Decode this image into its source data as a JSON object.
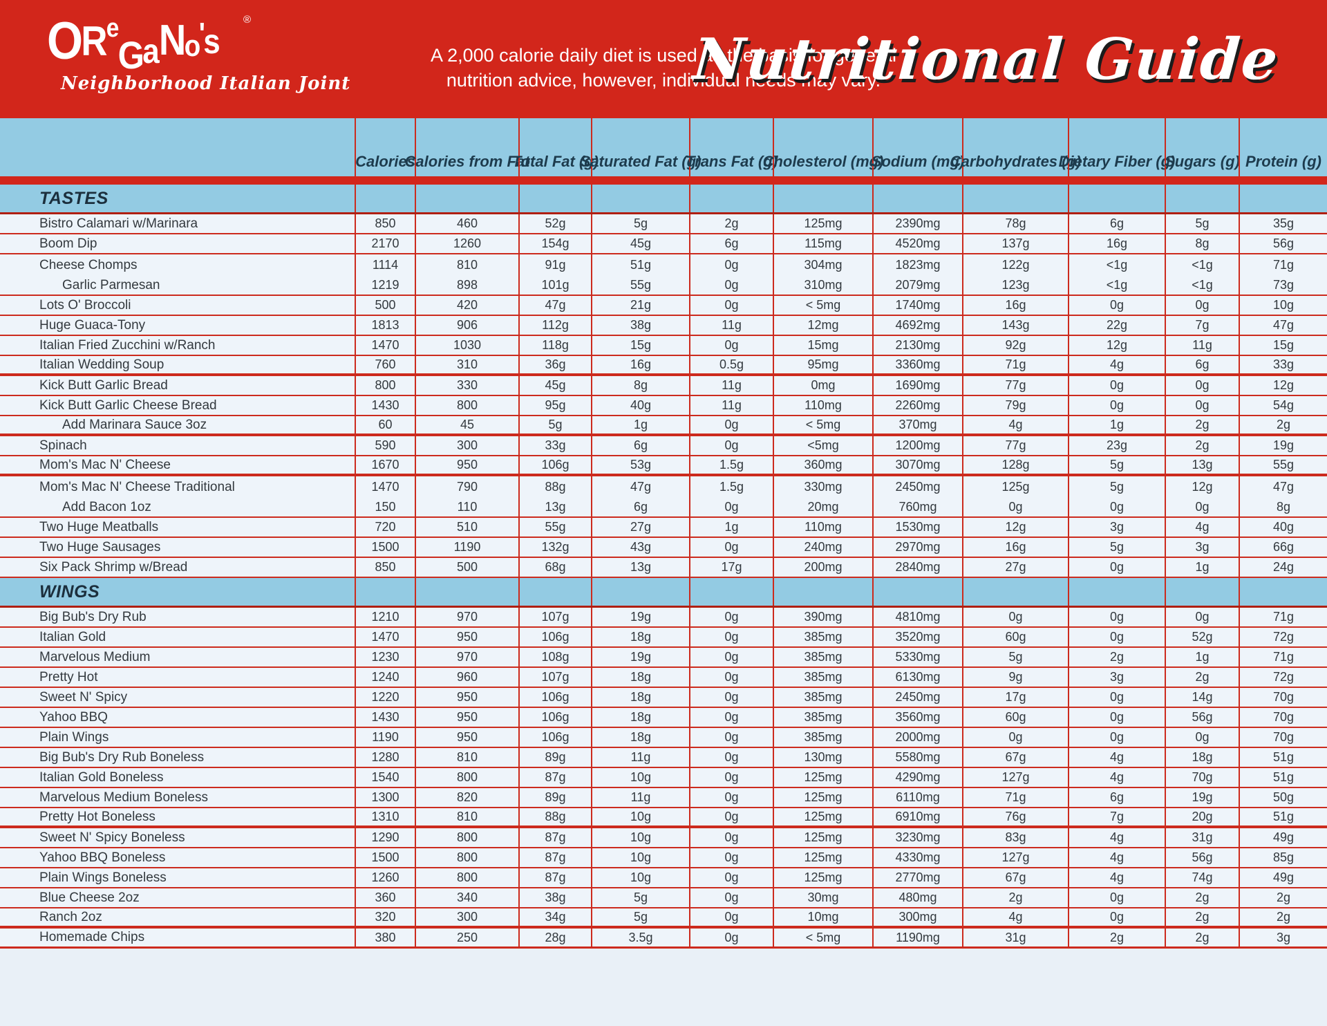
{
  "header": {
    "logo_text": "OReGaNo's",
    "logo_registered": "®",
    "logo_tagline": "Neighborhood Italian Joint",
    "disclaimer_line1": "A 2,000 calorie daily diet is used as the basis for general",
    "disclaimer_line2": "nutrition advice, however, individual needs may vary.",
    "title": "Nutritional Guide"
  },
  "colors": {
    "banner_red": "#d2261b",
    "grid_line_red": "#cc2a1d",
    "section_band_blue": "#93cbe3",
    "row_background": "#eef4fa",
    "page_background": "#e9f0f7",
    "header_text": "#1d3b4d",
    "body_text": "#33393e"
  },
  "table": {
    "columns": [
      "Calories",
      "Calories from Fat",
      "Total Fat (g)",
      "Saturated Fat (g)",
      "Trans Fat (g)",
      "Cholesterol (mg)",
      "Sodium (mg)",
      "Carbohydrates (g)",
      "Dietary Fiber (g)",
      "Sugars (g)",
      "Protein (g)"
    ],
    "sections": [
      {
        "label": "TASTES",
        "rows": [
          {
            "name": "Bistro Calamari w/Marinara",
            "values": [
              "850",
              "460",
              "52g",
              "5g",
              "2g",
              "125mg",
              "2390mg",
              "78g",
              "6g",
              "5g",
              "35g"
            ]
          },
          {
            "name": "Boom Dip",
            "values": [
              "2170",
              "1260",
              "154g",
              "45g",
              "6g",
              "115mg",
              "4520mg",
              "137g",
              "16g",
              "8g",
              "56g"
            ]
          },
          {
            "name": "Cheese Chomps",
            "sep": "none",
            "values": [
              "1114",
              "810",
              "91g",
              "51g",
              "0g",
              "304mg",
              "1823mg",
              "122g",
              "<1g",
              "<1g",
              "71g"
            ]
          },
          {
            "name": "Garlic Parmesan",
            "indent": true,
            "values": [
              "1219",
              "898",
              "101g",
              "55g",
              "0g",
              "310mg",
              "2079mg",
              "123g",
              "<1g",
              "<1g",
              "73g"
            ]
          },
          {
            "name": "Lots O' Broccoli",
            "values": [
              "500",
              "420",
              "47g",
              "21g",
              "0g",
              "< 5mg",
              "1740mg",
              "16g",
              "0g",
              "0g",
              "10g"
            ]
          },
          {
            "name": "Huge Guaca-Tony",
            "values": [
              "1813",
              "906",
              "112g",
              "38g",
              "11g",
              "12mg",
              "4692mg",
              "143g",
              "22g",
              "7g",
              "47g"
            ]
          },
          {
            "name": "Italian Fried Zucchini w/Ranch",
            "values": [
              "1470",
              "1030",
              "118g",
              "15g",
              "0g",
              "15mg",
              "2130mg",
              "92g",
              "12g",
              "11g",
              "15g"
            ]
          },
          {
            "name": "Italian Wedding Soup",
            "sep": "thick",
            "values": [
              "760",
              "310",
              "36g",
              "16g",
              "0.5g",
              "95mg",
              "3360mg",
              "71g",
              "4g",
              "6g",
              "33g"
            ]
          },
          {
            "name": "Kick Butt Garlic Bread",
            "values": [
              "800",
              "330",
              "45g",
              "8g",
              "11g",
              "0mg",
              "1690mg",
              "77g",
              "0g",
              "0g",
              "12g"
            ]
          },
          {
            "name": "Kick Butt Garlic Cheese Bread",
            "values": [
              "1430",
              "800",
              "95g",
              "40g",
              "11g",
              "110mg",
              "2260mg",
              "79g",
              "0g",
              "0g",
              "54g"
            ]
          },
          {
            "name": "Add Marinara Sauce 3oz",
            "indent": true,
            "sep": "thick",
            "values": [
              "60",
              "45",
              "5g",
              "1g",
              "0g",
              "< 5mg",
              "370mg",
              "4g",
              "1g",
              "2g",
              "2g"
            ]
          },
          {
            "name": "Spinach",
            "values": [
              "590",
              "300",
              "33g",
              "6g",
              "0g",
              "<5mg",
              "1200mg",
              "77g",
              "23g",
              "2g",
              "19g"
            ]
          },
          {
            "name": "Mom's Mac N' Cheese",
            "sep": "thick",
            "values": [
              "1670",
              "950",
              "106g",
              "53g",
              "1.5g",
              "360mg",
              "3070mg",
              "128g",
              "5g",
              "13g",
              "55g"
            ]
          },
          {
            "name": "Mom's Mac N' Cheese Traditional",
            "sep": "none",
            "values": [
              "1470",
              "790",
              "88g",
              "47g",
              "1.5g",
              "330mg",
              "2450mg",
              "125g",
              "5g",
              "12g",
              "47g"
            ]
          },
          {
            "name": "Add Bacon 1oz",
            "indent": true,
            "values": [
              "150",
              "110",
              "13g",
              "6g",
              "0g",
              "20mg",
              "760mg",
              "0g",
              "0g",
              "0g",
              "8g"
            ]
          },
          {
            "name": "Two Huge Meatballs",
            "values": [
              "720",
              "510",
              "55g",
              "27g",
              "1g",
              "110mg",
              "1530mg",
              "12g",
              "3g",
              "4g",
              "40g"
            ]
          },
          {
            "name": "Two Huge Sausages",
            "values": [
              "1500",
              "1190",
              "132g",
              "43g",
              "0g",
              "240mg",
              "2970mg",
              "16g",
              "5g",
              "3g",
              "66g"
            ]
          },
          {
            "name": "Six Pack Shrimp w/Bread",
            "values": [
              "850",
              "500",
              "68g",
              "13g",
              "17g",
              "200mg",
              "2840mg",
              "27g",
              "0g",
              "1g",
              "24g"
            ]
          }
        ]
      },
      {
        "label": "WINGS",
        "rows": [
          {
            "name": "Big Bub's Dry Rub",
            "values": [
              "1210",
              "970",
              "107g",
              "19g",
              "0g",
              "390mg",
              "4810mg",
              "0g",
              "0g",
              "0g",
              "71g"
            ]
          },
          {
            "name": "Italian Gold",
            "values": [
              "1470",
              "950",
              "106g",
              "18g",
              "0g",
              "385mg",
              "3520mg",
              "60g",
              "0g",
              "52g",
              "72g"
            ]
          },
          {
            "name": "Marvelous Medium",
            "values": [
              "1230",
              "970",
              "108g",
              "19g",
              "0g",
              "385mg",
              "5330mg",
              "5g",
              "2g",
              "1g",
              "71g"
            ]
          },
          {
            "name": "Pretty Hot",
            "values": [
              "1240",
              "960",
              "107g",
              "18g",
              "0g",
              "385mg",
              "6130mg",
              "9g",
              "3g",
              "2g",
              "72g"
            ]
          },
          {
            "name": "Sweet N' Spicy",
            "values": [
              "1220",
              "950",
              "106g",
              "18g",
              "0g",
              "385mg",
              "2450mg",
              "17g",
              "0g",
              "14g",
              "70g"
            ]
          },
          {
            "name": "Yahoo BBQ",
            "values": [
              "1430",
              "950",
              "106g",
              "18g",
              "0g",
              "385mg",
              "3560mg",
              "60g",
              "0g",
              "56g",
              "70g"
            ]
          },
          {
            "name": "Plain Wings",
            "values": [
              "1190",
              "950",
              "106g",
              "18g",
              "0g",
              "385mg",
              "2000mg",
              "0g",
              "0g",
              "0g",
              "70g"
            ]
          },
          {
            "name": "Big Bub's Dry Rub Boneless",
            "values": [
              "1280",
              "810",
              "89g",
              "11g",
              "0g",
              "130mg",
              "5580mg",
              "67g",
              "4g",
              "18g",
              "51g"
            ]
          },
          {
            "name": "Italian Gold Boneless",
            "values": [
              "1540",
              "800",
              "87g",
              "10g",
              "0g",
              "125mg",
              "4290mg",
              "127g",
              "4g",
              "70g",
              "51g"
            ]
          },
          {
            "name": "Marvelous Medium Boneless",
            "values": [
              "1300",
              "820",
              "89g",
              "11g",
              "0g",
              "125mg",
              "6110mg",
              "71g",
              "6g",
              "19g",
              "50g"
            ]
          },
          {
            "name": "Pretty Hot Boneless",
            "sep": "thick",
            "values": [
              "1310",
              "810",
              "88g",
              "10g",
              "0g",
              "125mg",
              "6910mg",
              "76g",
              "7g",
              "20g",
              "51g"
            ]
          },
          {
            "name": "Sweet N' Spicy Boneless",
            "values": [
              "1290",
              "800",
              "87g",
              "10g",
              "0g",
              "125mg",
              "3230mg",
              "83g",
              "4g",
              "31g",
              "49g"
            ]
          },
          {
            "name": "Yahoo BBQ Boneless",
            "values": [
              "1500",
              "800",
              "87g",
              "10g",
              "0g",
              "125mg",
              "4330mg",
              "127g",
              "4g",
              "56g",
              "85g"
            ]
          },
          {
            "name": "Plain Wings Boneless",
            "values": [
              "1260",
              "800",
              "87g",
              "10g",
              "0g",
              "125mg",
              "2770mg",
              "67g",
              "4g",
              "74g",
              "49g"
            ]
          },
          {
            "name": "Blue Cheese 2oz",
            "values": [
              "360",
              "340",
              "38g",
              "5g",
              "0g",
              "30mg",
              "480mg",
              "2g",
              "0g",
              "2g",
              "2g"
            ]
          },
          {
            "name": "Ranch 2oz",
            "sep": "thick",
            "values": [
              "320",
              "300",
              "34g",
              "5g",
              "0g",
              "10mg",
              "300mg",
              "4g",
              "0g",
              "2g",
              "2g"
            ]
          },
          {
            "name": "Homemade Chips",
            "sep": "last",
            "values": [
              "380",
              "250",
              "28g",
              "3.5g",
              "0g",
              "< 5mg",
              "1190mg",
              "31g",
              "2g",
              "2g",
              "3g"
            ]
          }
        ]
      }
    ]
  }
}
